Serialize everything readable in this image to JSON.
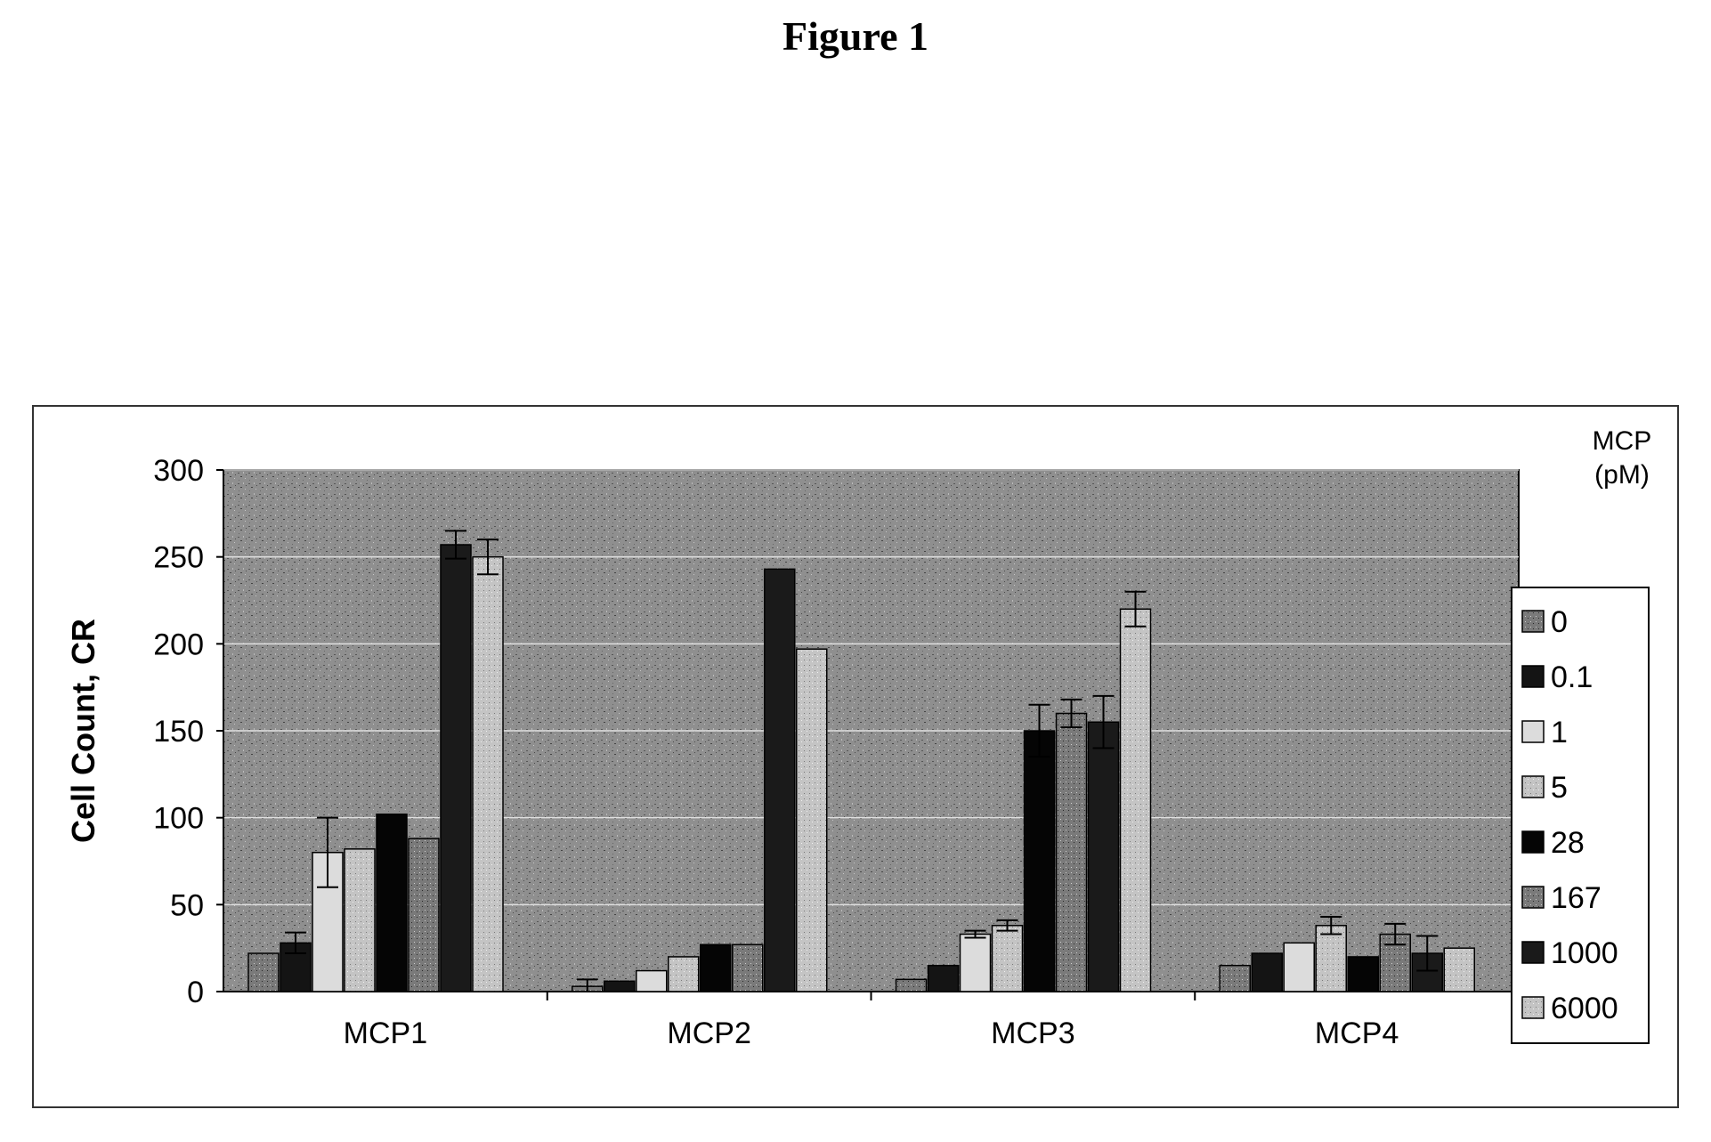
{
  "figure_title": "Figure 1",
  "chart_data": {
    "type": "bar",
    "title": "",
    "xlabel": "",
    "ylabel": "Cell Count, CR",
    "ylim": [
      0,
      300
    ],
    "yticks": [
      0,
      50,
      100,
      150,
      200,
      250,
      300
    ],
    "grid": true,
    "legend_position": "right",
    "legend_title": [
      "MCP",
      "(pM)"
    ],
    "categories": [
      "MCP1",
      "MCP2",
      "MCP3",
      "MCP4"
    ],
    "series": [
      {
        "name": "0",
        "color": "#8a8a8a",
        "pattern": "speckle",
        "values": [
          22,
          3,
          7,
          15
        ],
        "errors": [
          0,
          4,
          0,
          0
        ]
      },
      {
        "name": "0.1",
        "color": "#141414",
        "pattern": "dark",
        "values": [
          28,
          6,
          15,
          22
        ],
        "errors": [
          6,
          0,
          0,
          0
        ]
      },
      {
        "name": "1",
        "color": "#dcdcdc",
        "pattern": "light",
        "values": [
          80,
          12,
          33,
          28
        ],
        "errors": [
          20,
          0,
          2,
          0
        ]
      },
      {
        "name": "5",
        "color": "#bdbdbd",
        "pattern": "light-speckle",
        "values": [
          82,
          20,
          38,
          38
        ],
        "errors": [
          0,
          0,
          3,
          5
        ]
      },
      {
        "name": "28",
        "color": "#050505",
        "pattern": "solid",
        "values": [
          102,
          27,
          150,
          20
        ],
        "errors": [
          0,
          0,
          15,
          0
        ]
      },
      {
        "name": "167",
        "color": "#5a5a5a",
        "pattern": "speckle",
        "values": [
          88,
          27,
          160,
          33
        ],
        "errors": [
          0,
          0,
          8,
          6
        ]
      },
      {
        "name": "1000",
        "color": "#1a1a1a",
        "pattern": "dark",
        "values": [
          257,
          243,
          155,
          22
        ],
        "errors": [
          8,
          0,
          15,
          10
        ]
      },
      {
        "name": "6000",
        "color": "#b3b3b3",
        "pattern": "light-speckle",
        "values": [
          250,
          197,
          220,
          25
        ],
        "errors": [
          10,
          0,
          10,
          0
        ]
      }
    ]
  }
}
